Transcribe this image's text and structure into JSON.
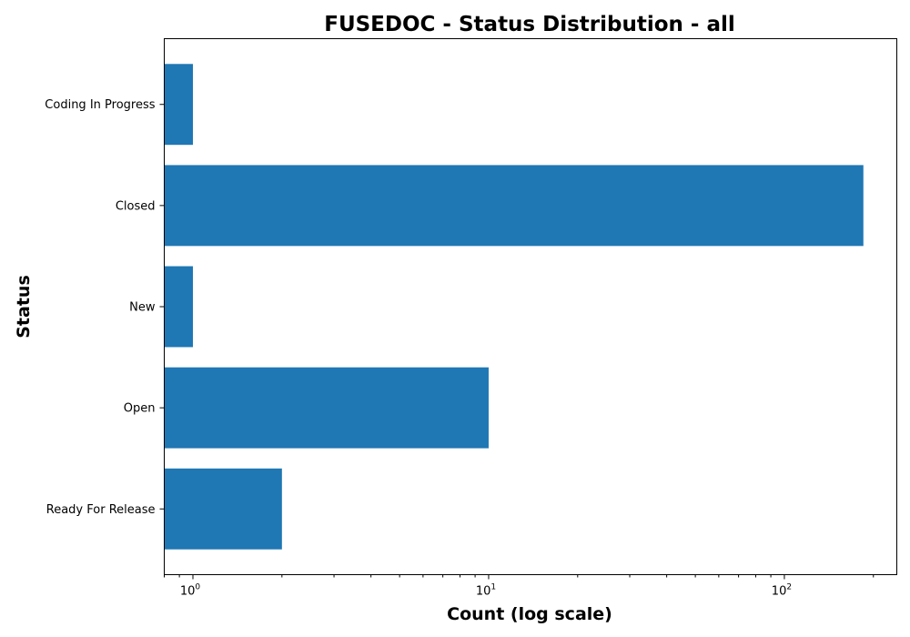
{
  "chart_data": {
    "type": "bar",
    "orientation": "horizontal",
    "title": "FUSEDOC - Status Distribution - all",
    "xlabel": "Count (log scale)",
    "ylabel": "Status",
    "xscale": "log",
    "xlim": [
      0.8,
      240
    ],
    "x_major_ticks": [
      1,
      10,
      100
    ],
    "x_major_tick_labels": [
      "10^0",
      "10^1",
      "10^2"
    ],
    "categories": [
      "Coding In Progress",
      "Closed",
      "New",
      "Open",
      "Ready For Release"
    ],
    "values": [
      1,
      185,
      1,
      10,
      2
    ],
    "bar_color": "#1f77b4",
    "grid": false,
    "legend": "none"
  }
}
